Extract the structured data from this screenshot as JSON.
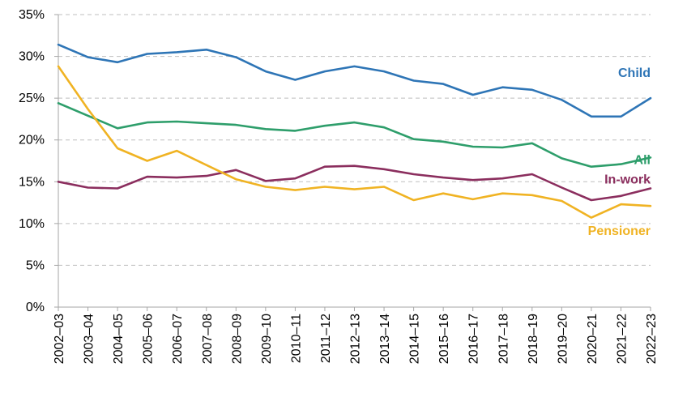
{
  "chart_data": {
    "type": "line",
    "title": "",
    "xlabel": "",
    "ylabel": "",
    "ylim": [
      0,
      35
    ],
    "y_ticks": [
      0,
      5,
      10,
      15,
      20,
      25,
      30,
      35
    ],
    "y_tick_labels": [
      "0%",
      "5%",
      "10%",
      "15%",
      "20%",
      "25%",
      "30%",
      "35%"
    ],
    "grid": "horizontal-dashed",
    "categories": [
      "2002–03",
      "2003–04",
      "2004–05",
      "2005–06",
      "2006–07",
      "2007–08",
      "2008–09",
      "2009–10",
      "2010–11",
      "2011–12",
      "2012–13",
      "2013–14",
      "2014–15",
      "2015–16",
      "2016–17",
      "2017–18",
      "2018–19",
      "2019–20",
      "2020–21",
      "2021–22",
      "2022–23"
    ],
    "series": [
      {
        "name": "Child",
        "color": "#2E75B6",
        "values": [
          31.4,
          29.9,
          29.3,
          30.3,
          30.5,
          30.8,
          29.9,
          28.2,
          27.2,
          28.2,
          28.8,
          28.2,
          27.1,
          26.7,
          25.4,
          26.3,
          26.0,
          24.8,
          22.8,
          22.8,
          25.0
        ]
      },
      {
        "name": "All",
        "color": "#2E9E6B",
        "values": [
          24.4,
          22.9,
          21.4,
          22.1,
          22.2,
          22.0,
          21.8,
          21.3,
          21.1,
          21.7,
          22.1,
          21.5,
          20.1,
          19.8,
          19.2,
          19.1,
          19.6,
          17.8,
          16.8,
          17.1,
          17.9
        ]
      },
      {
        "name": "In-work",
        "color": "#8B2E5E",
        "values": [
          15.0,
          14.3,
          14.2,
          15.6,
          15.5,
          15.7,
          16.4,
          15.1,
          15.4,
          16.8,
          16.9,
          16.5,
          15.9,
          15.5,
          15.2,
          15.4,
          15.9,
          14.3,
          12.8,
          13.3,
          14.2
        ]
      },
      {
        "name": "Pensioner",
        "color": "#F0B323",
        "values": [
          28.8,
          23.7,
          19.0,
          17.5,
          18.7,
          17.0,
          15.3,
          14.4,
          14.0,
          14.4,
          14.1,
          14.4,
          12.8,
          13.6,
          12.9,
          13.6,
          13.4,
          12.7,
          10.7,
          12.3,
          12.1
        ]
      }
    ]
  }
}
